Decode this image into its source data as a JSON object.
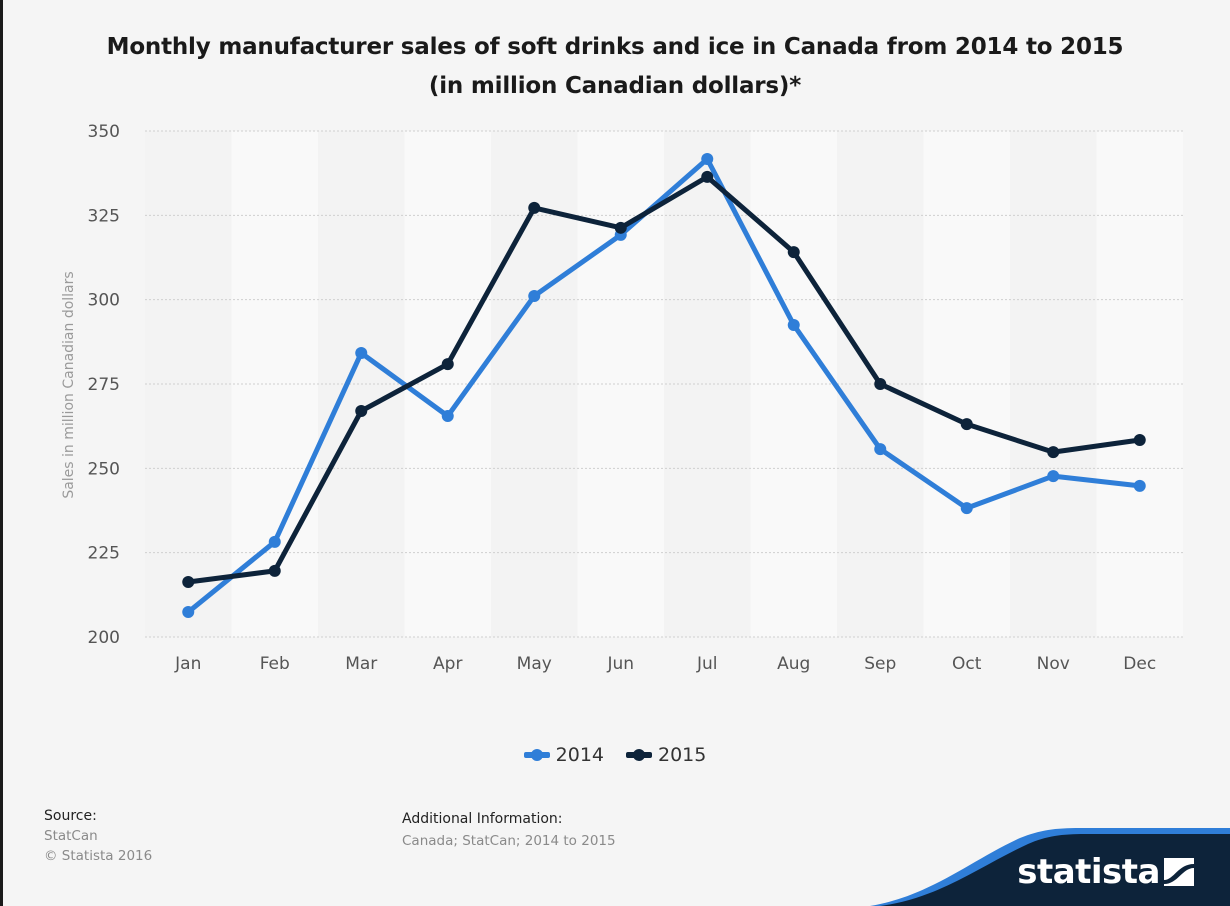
{
  "title": "Monthly manufacturer sales of soft drinks and ice in Canada from 2014 to 2015 (in million Canadian dollars)*",
  "chart_data": {
    "type": "line",
    "title": "Monthly manufacturer sales of soft drinks and ice in Canada from 2014 to 2015 (in million Canadian dollars)*",
    "xlabel": "",
    "ylabel": "Sales in million Canadian dollars",
    "ylim": [
      200,
      350
    ],
    "yticks": [
      200,
      225,
      250,
      275,
      300,
      325,
      350
    ],
    "categories": [
      "Jan",
      "Feb",
      "Mar",
      "Apr",
      "May",
      "Jun",
      "Jul",
      "Aug",
      "Sep",
      "Oct",
      "Nov",
      "Dec"
    ],
    "grid": true,
    "legend_position": "bottom-center",
    "series": [
      {
        "name": "2014",
        "color": "#2f7ed8",
        "values": [
          207.4,
          228.2,
          284.2,
          265.5,
          301.1,
          319.2,
          341.7,
          292.5,
          255.7,
          238.2,
          247.7,
          244.8
        ]
      },
      {
        "name": "2015",
        "color": "#0d233a",
        "values": [
          216.3,
          219.6,
          267.0,
          280.9,
          327.2,
          321.3,
          336.4,
          314.1,
          275.0,
          263.1,
          254.8,
          258.4
        ]
      }
    ]
  },
  "footer": {
    "source_label": "Source:",
    "source_lines": [
      "StatCan",
      "© Statista 2016"
    ],
    "additional_label": "Additional Information:",
    "additional_text": "Canada; StatCan; 2014 to 2015"
  },
  "brand": {
    "name": "statista",
    "icon": "statista-logo-icon",
    "dark_color": "#0d233a",
    "accent_color": "#2f7ed8"
  }
}
